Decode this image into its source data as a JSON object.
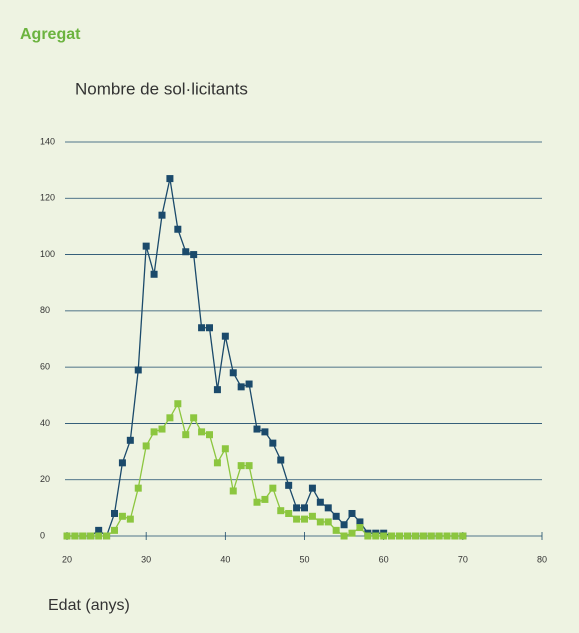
{
  "chart_data": {
    "type": "line",
    "title": "Agregat",
    "subtitle": "Nombre de sol·licitants",
    "x_label": "Edat (anys)",
    "x": [
      20,
      21,
      22,
      23,
      24,
      25,
      26,
      27,
      28,
      29,
      30,
      31,
      32,
      33,
      34,
      35,
      36,
      37,
      38,
      39,
      40,
      41,
      42,
      43,
      44,
      45,
      46,
      47,
      48,
      49,
      50,
      51,
      52,
      53,
      54,
      55,
      56,
      57,
      58,
      59,
      60,
      61,
      62,
      63,
      64,
      65,
      66,
      67,
      68,
      69,
      70
    ],
    "series": [
      {
        "color": "#1b4a6b",
        "values": [
          0,
          0,
          0,
          0,
          2,
          0,
          8,
          26,
          34,
          59,
          103,
          93,
          114,
          127,
          109,
          101,
          100,
          74,
          74,
          52,
          71,
          58,
          53,
          54,
          38,
          37,
          33,
          27,
          18,
          10,
          10,
          17,
          12,
          10,
          7,
          4,
          8,
          5,
          1,
          1,
          1,
          0,
          0,
          0,
          0,
          0,
          0,
          0,
          0,
          0,
          0
        ]
      },
      {
        "color": "#8cc63f",
        "values": [
          0,
          0,
          0,
          0,
          0,
          0,
          2,
          7,
          6,
          17,
          32,
          37,
          38,
          42,
          47,
          36,
          42,
          37,
          36,
          26,
          31,
          16,
          25,
          25,
          12,
          13,
          17,
          9,
          8,
          6,
          6,
          7,
          5,
          5,
          2,
          0,
          1,
          3,
          0,
          0,
          0,
          0,
          0,
          0,
          0,
          0,
          0,
          0,
          0,
          0,
          0
        ]
      }
    ],
    "xlim": [
      20,
      80
    ],
    "xticks": [
      20,
      30,
      40,
      50,
      60,
      70,
      80
    ],
    "ylim": [
      0,
      140
    ],
    "yticks": [
      0,
      20,
      40,
      60,
      80,
      100,
      120,
      140
    ],
    "grid": true
  }
}
